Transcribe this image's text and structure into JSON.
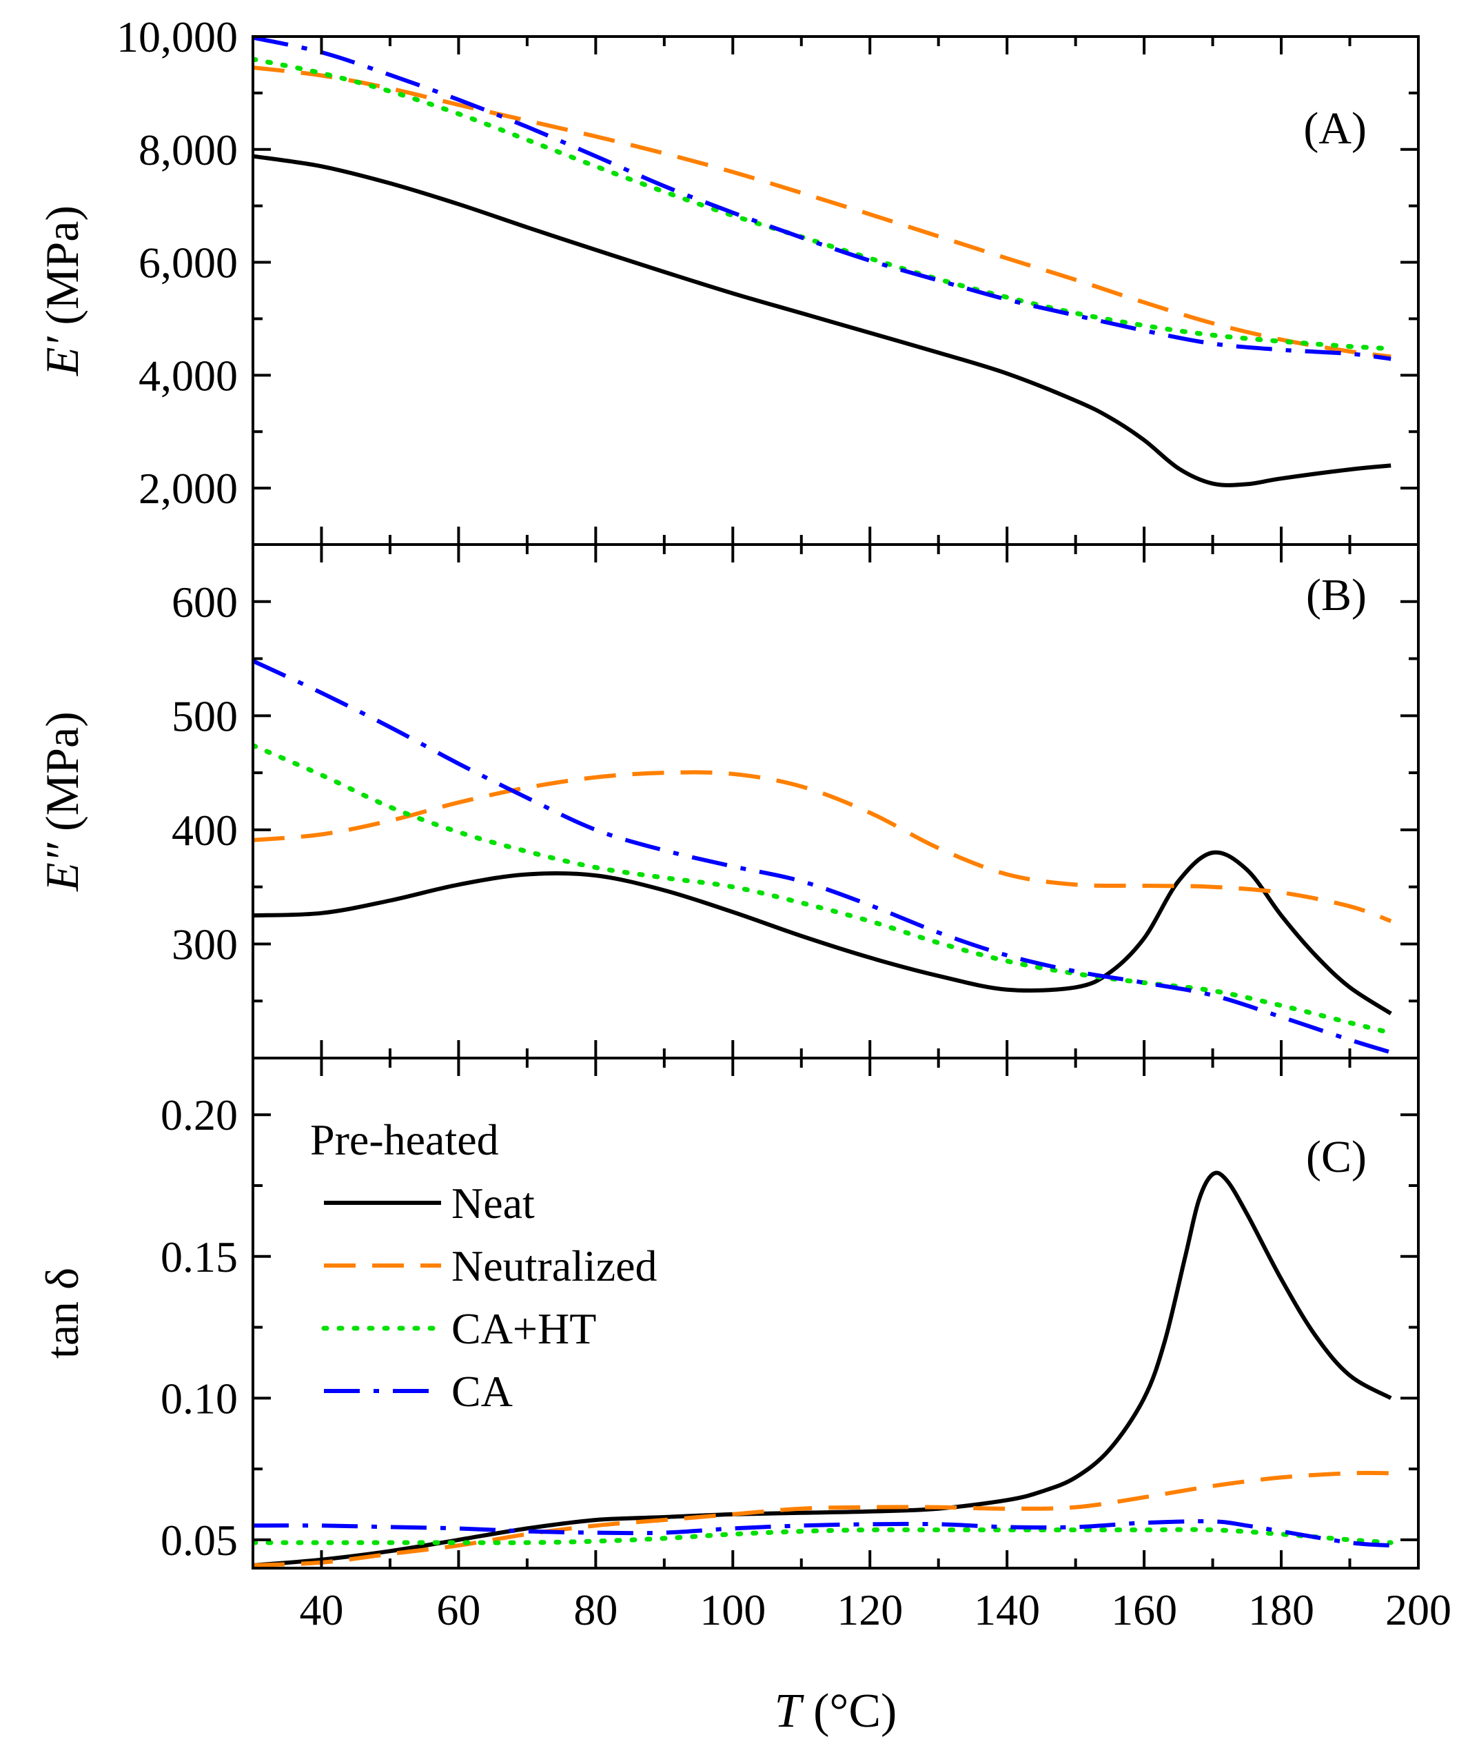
{
  "chart_data": [
    {
      "panel": "(A)",
      "type": "line",
      "ylabel_symbol": "E′",
      "ylabel_unit": " (MPa)",
      "ylim": [
        1000,
        10000
      ],
      "yticks": [
        2000,
        4000,
        6000,
        8000,
        10000
      ],
      "ytick_labels": [
        "2,000",
        "4,000",
        "6,000",
        "8,000",
        "10,000"
      ],
      "xlim": [
        30,
        200
      ],
      "series": [
        {
          "name": "Neat",
          "x": [
            30,
            40,
            50,
            60,
            70,
            80,
            90,
            100,
            110,
            120,
            130,
            140,
            150,
            155,
            160,
            165,
            170,
            175,
            180,
            190,
            196
          ],
          "y": [
            7880,
            7700,
            7400,
            7030,
            6620,
            6220,
            5830,
            5450,
            5100,
            4750,
            4400,
            4030,
            3550,
            3250,
            2850,
            2350,
            2080,
            2070,
            2170,
            2330,
            2400
          ]
        },
        {
          "name": "Neutralized",
          "x": [
            30,
            40,
            50,
            60,
            70,
            80,
            90,
            100,
            110,
            120,
            130,
            140,
            150,
            160,
            170,
            180,
            190,
            196
          ],
          "y": [
            9450,
            9310,
            9080,
            8790,
            8510,
            8230,
            7930,
            7600,
            7230,
            6850,
            6460,
            6070,
            5690,
            5290,
            4920,
            4630,
            4420,
            4330
          ]
        },
        {
          "name": "CA+HT",
          "x": [
            30,
            40,
            50,
            60,
            70,
            80,
            90,
            100,
            110,
            120,
            130,
            140,
            150,
            160,
            170,
            180,
            190,
            196
          ],
          "y": [
            9600,
            9350,
            9030,
            8630,
            8170,
            7700,
            7250,
            6830,
            6450,
            6070,
            5700,
            5380,
            5100,
            4880,
            4710,
            4600,
            4510,
            4470
          ]
        },
        {
          "name": "CA",
          "x": [
            30,
            40,
            50,
            60,
            70,
            80,
            90,
            100,
            110,
            120,
            130,
            140,
            150,
            160,
            170,
            180,
            190,
            196
          ],
          "y": [
            9980,
            9720,
            9320,
            8880,
            8400,
            7880,
            7350,
            6880,
            6440,
            6030,
            5680,
            5340,
            5060,
            4790,
            4560,
            4450,
            4380,
            4290
          ]
        }
      ]
    },
    {
      "panel": "(B)",
      "type": "line",
      "ylabel_symbol": "E″",
      "ylabel_unit": " (MPa)",
      "ylim": [
        200,
        650
      ],
      "yticks": [
        300,
        400,
        500,
        600
      ],
      "ytick_labels": [
        "300",
        "400",
        "500",
        "600"
      ],
      "xlim": [
        30,
        200
      ],
      "series": [
        {
          "name": "Neat",
          "x": [
            30,
            40,
            50,
            60,
            70,
            80,
            90,
            100,
            110,
            120,
            130,
            140,
            150,
            155,
            160,
            165,
            170,
            175,
            180,
            185,
            190,
            196
          ],
          "y": [
            325,
            327,
            338,
            352,
            361,
            360,
            347,
            328,
            307,
            288,
            272,
            260,
            262,
            275,
            305,
            355,
            380,
            365,
            325,
            290,
            262,
            239
          ]
        },
        {
          "name": "Neutralized",
          "x": [
            30,
            40,
            50,
            60,
            70,
            80,
            90,
            100,
            110,
            120,
            130,
            140,
            150,
            160,
            170,
            180,
            190,
            196
          ],
          "y": [
            391,
            396,
            408,
            424,
            437,
            446,
            450,
            449,
            438,
            415,
            384,
            361,
            352,
            351,
            350,
            345,
            333,
            320
          ]
        },
        {
          "name": "CA+HT",
          "x": [
            30,
            40,
            50,
            60,
            70,
            80,
            90,
            100,
            110,
            120,
            130,
            140,
            150,
            160,
            170,
            180,
            190,
            196
          ],
          "y": [
            474,
            448,
            420,
            398,
            381,
            367,
            358,
            350,
            336,
            320,
            301,
            285,
            274,
            266,
            259,
            246,
            231,
            222
          ]
        },
        {
          "name": "CA",
          "x": [
            30,
            40,
            50,
            60,
            70,
            80,
            90,
            100,
            110,
            120,
            130,
            140,
            150,
            160,
            170,
            180,
            190,
            196
          ],
          "y": [
            548,
            520,
            490,
            458,
            428,
            400,
            382,
            368,
            355,
            334,
            310,
            290,
            276,
            266,
            255,
            236,
            216,
            205
          ]
        }
      ]
    },
    {
      "panel": "(C)",
      "type": "line",
      "ylabel_symbol": "tan δ",
      "ylabel_unit": "",
      "ylim": [
        0.04,
        0.22
      ],
      "yticks": [
        0.05,
        0.1,
        0.15,
        0.2
      ],
      "ytick_labels": [
        "0.05",
        "0.10",
        "0.15",
        "0.20"
      ],
      "xlim": [
        30,
        200
      ],
      "xticks": [
        40,
        60,
        80,
        100,
        120,
        140,
        160,
        180,
        200
      ],
      "xtick_labels": [
        "40",
        "60",
        "80",
        "100",
        "120",
        "140",
        "160",
        "180",
        "200"
      ],
      "xlabel_symbol": "T",
      "xlabel_unit": " (°C)",
      "series": [
        {
          "name": "Neat",
          "x": [
            30,
            40,
            50,
            60,
            70,
            80,
            90,
            100,
            110,
            120,
            130,
            140,
            145,
            150,
            155,
            160,
            163,
            166,
            168,
            170,
            172,
            175,
            180,
            185,
            190,
            196
          ],
          "y": [
            0.041,
            0.043,
            0.046,
            0.05,
            0.054,
            0.057,
            0.058,
            0.059,
            0.0595,
            0.06,
            0.061,
            0.064,
            0.067,
            0.072,
            0.082,
            0.1,
            0.12,
            0.15,
            0.17,
            0.179,
            0.177,
            0.165,
            0.142,
            0.122,
            0.108,
            0.1
          ]
        },
        {
          "name": "Neutralized",
          "x": [
            30,
            40,
            50,
            60,
            70,
            80,
            90,
            100,
            110,
            120,
            130,
            140,
            150,
            160,
            170,
            180,
            190,
            196
          ],
          "y": [
            0.041,
            0.042,
            0.045,
            0.048,
            0.052,
            0.055,
            0.057,
            0.059,
            0.061,
            0.0615,
            0.0615,
            0.061,
            0.0615,
            0.065,
            0.069,
            0.072,
            0.0735,
            0.0735
          ]
        },
        {
          "name": "CA+HT",
          "x": [
            30,
            40,
            50,
            60,
            70,
            80,
            90,
            100,
            110,
            120,
            130,
            140,
            150,
            160,
            170,
            180,
            190,
            196
          ],
          "y": [
            0.049,
            0.049,
            0.049,
            0.049,
            0.049,
            0.0495,
            0.0505,
            0.052,
            0.053,
            0.0535,
            0.0535,
            0.0535,
            0.0535,
            0.0535,
            0.0535,
            0.052,
            0.05,
            0.049
          ]
        },
        {
          "name": "CA",
          "x": [
            30,
            40,
            50,
            60,
            70,
            80,
            90,
            100,
            110,
            120,
            130,
            140,
            150,
            160,
            170,
            175,
            180,
            190,
            196
          ],
          "y": [
            0.055,
            0.055,
            0.0545,
            0.054,
            0.053,
            0.0525,
            0.0525,
            0.054,
            0.055,
            0.0555,
            0.0555,
            0.0545,
            0.0545,
            0.056,
            0.0565,
            0.055,
            0.053,
            0.049,
            0.048
          ]
        }
      ]
    }
  ],
  "legend": {
    "title": "Pre-heated",
    "entries": [
      "Neat",
      "Neutralized",
      "CA+HT",
      "CA"
    ]
  },
  "series_styles": {
    "Neat": {
      "color": "#000000",
      "dash": "none"
    },
    "Neutralized": {
      "color": "#ff8000",
      "dash": "dashed"
    },
    "CA+HT": {
      "color": "#00e000",
      "dash": "dotted"
    },
    "CA": {
      "color": "#0000ff",
      "dash": "dashdot"
    }
  }
}
